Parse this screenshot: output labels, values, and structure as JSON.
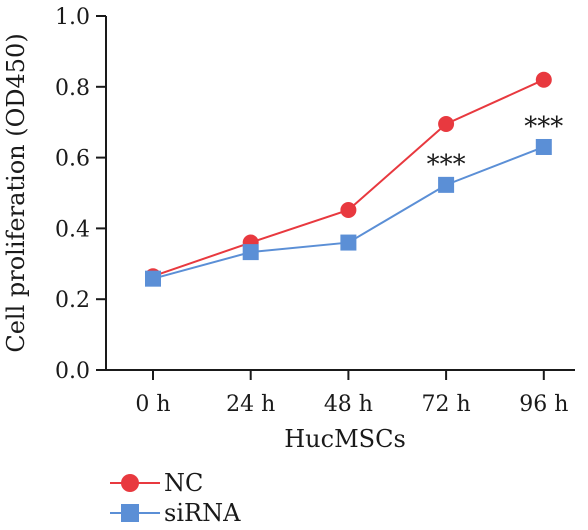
{
  "chart_data": {
    "type": "line",
    "categories": [
      "0 h",
      "24 h",
      "48 h",
      "72 h",
      "96 h"
    ],
    "xlabel": "HucMSCs",
    "ylabel": "Cell proliferation (OD450)",
    "ylim": [
      0.0,
      1.0
    ],
    "yticks": [
      0.0,
      0.2,
      0.4,
      0.6,
      0.8,
      1.0
    ],
    "ytick_labels": [
      "0.0",
      "0.2",
      "0.4",
      "0.6",
      "0.8",
      "1.0"
    ],
    "grid": false,
    "legend_position": "bottom-left",
    "series": [
      {
        "name": "NC",
        "values": [
          0.265,
          0.36,
          0.452,
          0.695,
          0.82
        ],
        "color": "#e8393f",
        "marker": "circle"
      },
      {
        "name": "siRNA",
        "values": [
          0.258,
          0.333,
          0.36,
          0.523,
          0.63
        ],
        "color": "#5b8fd6",
        "marker": "square"
      }
    ],
    "annotations": [
      {
        "text": "***",
        "category_index": 3,
        "series": "siRNA"
      },
      {
        "text": "***",
        "category_index": 4,
        "series": "siRNA"
      }
    ]
  }
}
